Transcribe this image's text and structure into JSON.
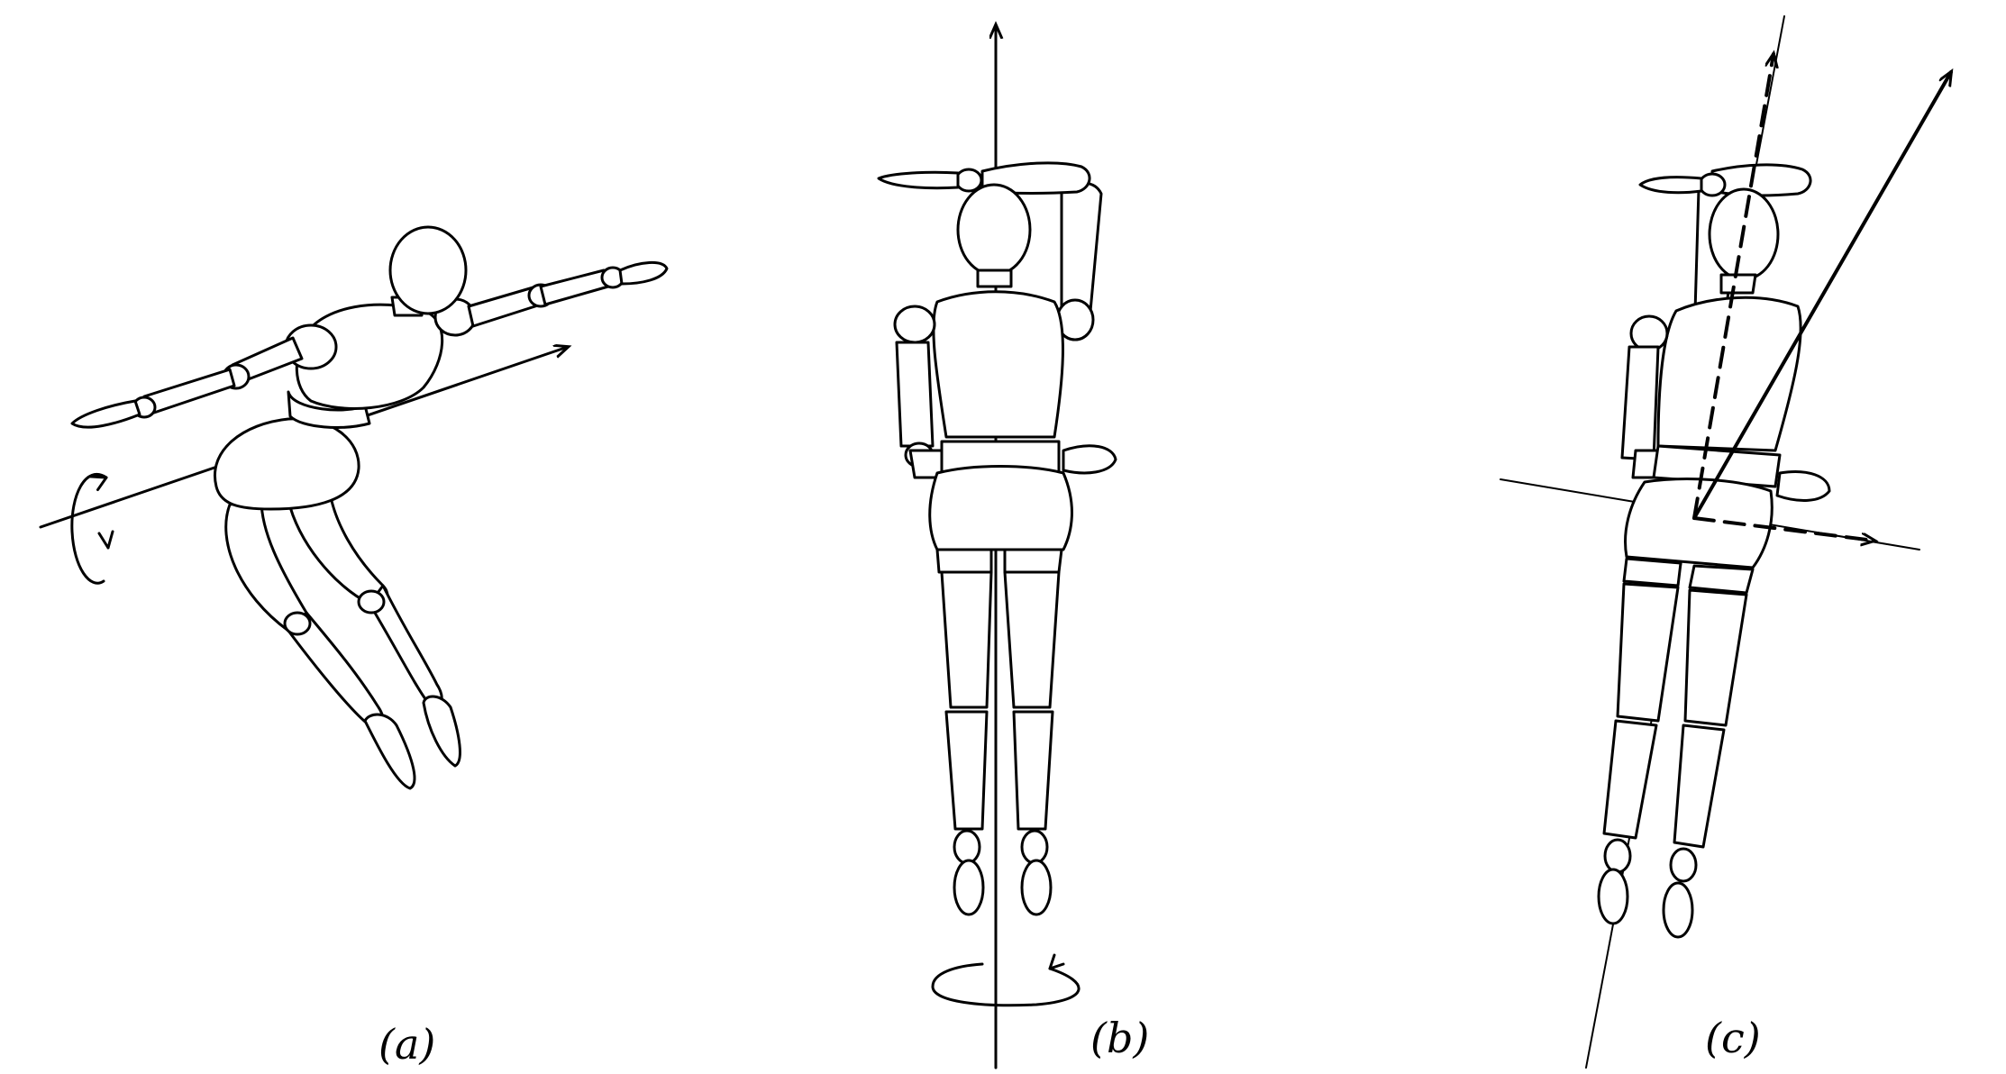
{
  "panels": [
    {
      "id": "a",
      "label": "(a)"
    },
    {
      "id": "b",
      "label": "(b)"
    },
    {
      "id": "c",
      "label": "(c)"
    }
  ]
}
